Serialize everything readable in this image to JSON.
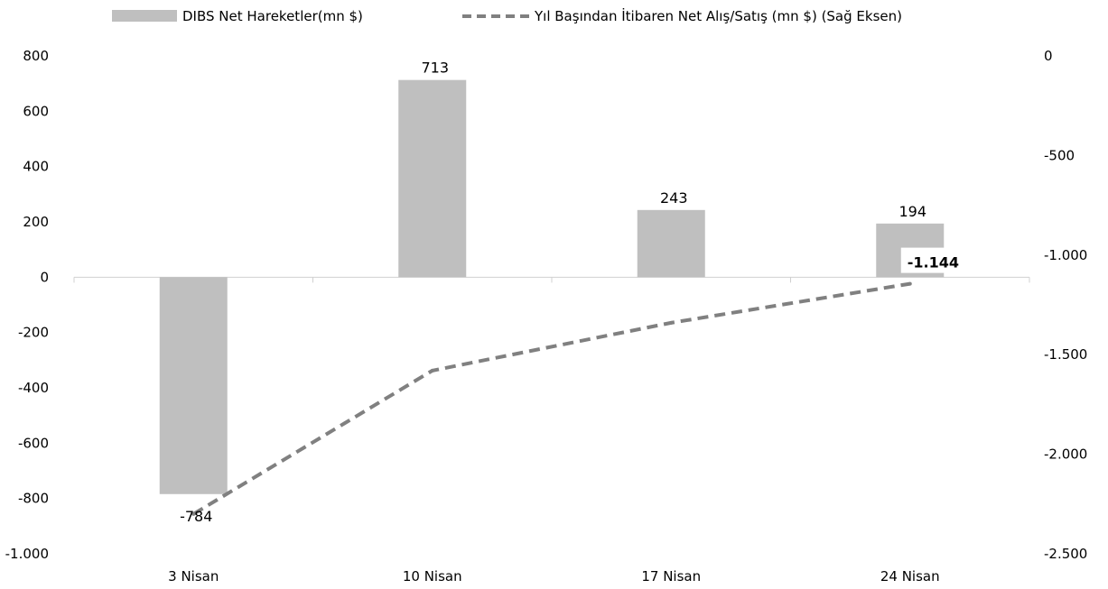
{
  "chart_data": {
    "type": "bar",
    "categories": [
      "3 Nisan",
      "10 Nisan",
      "17 Nisan",
      "24 Nisan"
    ],
    "series": [
      {
        "name": "DIBS Net Hareketler(mn $)",
        "type": "bar",
        "axis": "left",
        "values": [
          -784,
          713,
          243,
          194
        ],
        "labels": [
          "-784",
          "713",
          "243",
          "194"
        ],
        "color": "#bfbfbf"
      },
      {
        "name": "Yıl Başından İtibaren Net Alış/Satış (mn $) (Sağ Eksen)",
        "type": "line",
        "style": "dashed",
        "axis": "right",
        "values": [
          -2300,
          -1580,
          -1340,
          -1144
        ],
        "end_label": "-1.144",
        "color": "#808080"
      }
    ],
    "y_left": {
      "ylim": [
        -1000,
        800
      ],
      "ticks": [
        800,
        600,
        400,
        200,
        0,
        -200,
        -400,
        -600,
        -800,
        -1000
      ],
      "tick_labels": [
        "800",
        "600",
        "400",
        "200",
        "0",
        "-200",
        "-400",
        "-600",
        "-800",
        "-1.000"
      ]
    },
    "y_right": {
      "ylim": [
        -2500,
        0
      ],
      "ticks": [
        0,
        -500,
        -1000,
        -1500,
        -2000,
        -2500
      ],
      "tick_labels": [
        "0",
        "-500",
        "-1.000",
        "-1.500",
        "-2.000",
        "-2.500"
      ]
    },
    "legend_position": "top",
    "grid": false
  }
}
